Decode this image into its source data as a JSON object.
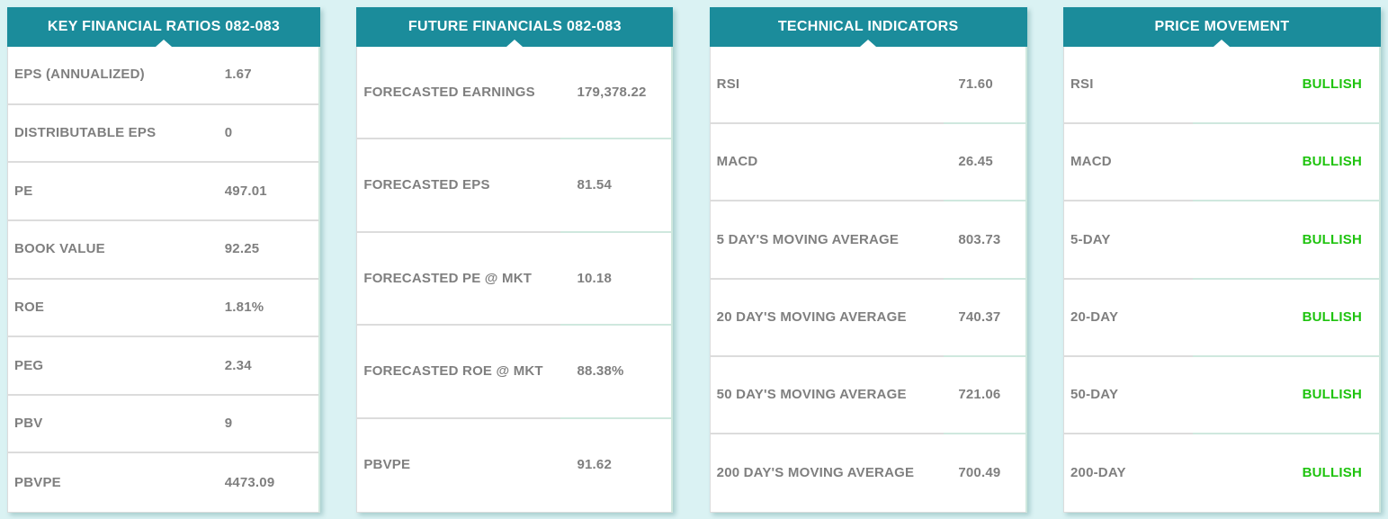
{
  "colors": {
    "header_bg": "#1b8c9b",
    "header_text": "#ffffff",
    "label_text": "#7f7f7f",
    "value_text": "#7f7f7f",
    "bullish_green": "#1fc30f",
    "page_bg": "#daf2f3",
    "row_border_gray": "#dcdcdc",
    "row_border_teal": "#cfe8de",
    "panel_bg": "#ffffff"
  },
  "panels": [
    {
      "id": "key-financial-ratios",
      "title": "KEY FINANCIAL RATIOS 082-083",
      "rows": [
        {
          "label": "EPS (ANNUALIZED)",
          "value": "1.67"
        },
        {
          "label": "DISTRIBUTABLE EPS",
          "value": "0"
        },
        {
          "label": "PE",
          "value": "497.01"
        },
        {
          "label": "BOOK VALUE",
          "value": "92.25"
        },
        {
          "label": "ROE",
          "value": "1.81%"
        },
        {
          "label": "PEG",
          "value": "2.34"
        },
        {
          "label": "PBV",
          "value": "9"
        },
        {
          "label": "PBVPE",
          "value": "4473.09"
        }
      ]
    },
    {
      "id": "future-financials",
      "title": "FUTURE FINANCIALS 082-083",
      "rows": [
        {
          "label": "FORECASTED EARNINGS",
          "value": "179,378.22"
        },
        {
          "label": "FORECASTED EPS",
          "value": "81.54"
        },
        {
          "label": "FORECASTED PE @ MKT",
          "value": "10.18"
        },
        {
          "label": "FORECASTED ROE @ MKT",
          "value": "88.38%"
        },
        {
          "label": "PBVPE",
          "value": "91.62"
        }
      ]
    },
    {
      "id": "technical-indicators",
      "title": "TECHNICAL INDICATORS",
      "rows": [
        {
          "label": "RSI",
          "value": "71.60"
        },
        {
          "label": "MACD",
          "value": "26.45"
        },
        {
          "label": "5 DAY'S MOVING AVERAGE",
          "value": "803.73"
        },
        {
          "label": "20 DAY'S MOVING AVERAGE",
          "value": "740.37"
        },
        {
          "label": "50 DAY'S MOVING AVERAGE",
          "value": "721.06"
        },
        {
          "label": "200 DAY'S MOVING AVERAGE",
          "value": "700.49"
        }
      ]
    },
    {
      "id": "price-movement",
      "title": "PRICE MOVEMENT",
      "rows": [
        {
          "label": "RSI",
          "value": "BULLISH",
          "status": "bullish"
        },
        {
          "label": "MACD",
          "value": "BULLISH",
          "status": "bullish"
        },
        {
          "label": "5-DAY",
          "value": "BULLISH",
          "status": "bullish"
        },
        {
          "label": "20-DAY",
          "value": "BULLISH",
          "status": "bullish"
        },
        {
          "label": "50-DAY",
          "value": "BULLISH",
          "status": "bullish"
        },
        {
          "label": "200-DAY",
          "value": "BULLISH",
          "status": "bullish"
        }
      ]
    }
  ]
}
